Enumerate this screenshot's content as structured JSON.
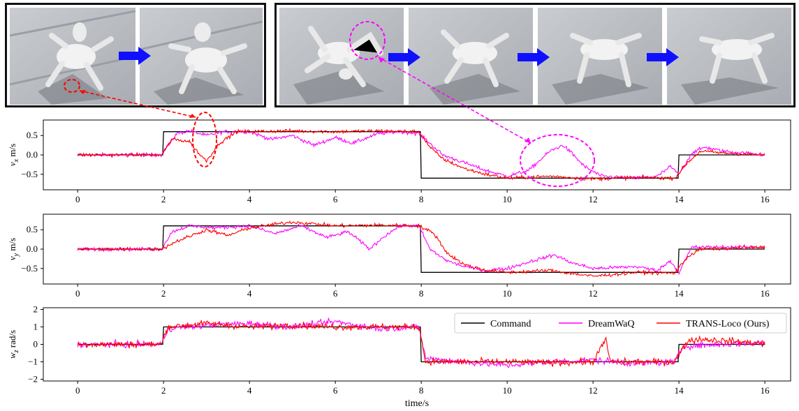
{
  "illustrations": {
    "frames": [
      {
        "name": "dreamwaq-stumble-sequence",
        "photos": [
          "robot-frame-1",
          "robot-frame-2"
        ]
      },
      {
        "name": "transloco-recovery-sequence",
        "photos": [
          "robot-frame-3",
          "robot-frame-4",
          "robot-frame-5",
          "robot-frame-6"
        ]
      }
    ]
  },
  "chart_data": {
    "type": "line",
    "xlabel": "time/s",
    "xlim": [
      -0.8,
      16.6
    ],
    "xticks": [
      0,
      2,
      4,
      6,
      8,
      10,
      12,
      14,
      16
    ],
    "colors": {
      "Command": "#000000",
      "DreamWaQ": "#ff00ff",
      "TRANS-Loco (Ours)": "#ff0000"
    },
    "legend": {
      "entries": [
        "Command",
        "DreamWaQ",
        "TRANS-Loco (Ours)"
      ],
      "position": "upper-right of bottom panel"
    },
    "panels": [
      {
        "id": "vx",
        "ylabel_main": "v",
        "ylabel_sub": "x",
        "ylabel_unit": " m/s",
        "ylim": [
          -0.9,
          0.9
        ],
        "yticks": [
          -0.5,
          0.0,
          0.5
        ],
        "ytick_labels": [
          "−0.5",
          "0.0",
          "0.5"
        ],
        "series": [
          {
            "name": "Command",
            "points": [
              [
                0,
                0
              ],
              [
                1.98,
                0
              ],
              [
                2,
                0.6
              ],
              [
                7.98,
                0.6
              ],
              [
                8,
                -0.6
              ],
              [
                13.98,
                -0.6
              ],
              [
                14,
                0
              ],
              [
                16,
                0
              ]
            ]
          },
          {
            "name": "DreamWaQ",
            "points": [
              [
                0,
                0
              ],
              [
                1.95,
                0
              ],
              [
                2.3,
                0.55
              ],
              [
                2.6,
                0.62
              ],
              [
                3.0,
                0.5
              ],
              [
                3.4,
                0.6
              ],
              [
                4.0,
                0.6
              ],
              [
                4.5,
                0.4
              ],
              [
                5.0,
                0.5
              ],
              [
                5.5,
                0.25
              ],
              [
                6.0,
                0.45
              ],
              [
                6.4,
                0.3
              ],
              [
                7.0,
                0.55
              ],
              [
                7.5,
                0.6
              ],
              [
                7.95,
                0.55
              ],
              [
                8.2,
                0.3
              ],
              [
                8.5,
                0.0
              ],
              [
                9.0,
                -0.2
              ],
              [
                9.5,
                -0.4
              ],
              [
                10,
                -0.55
              ],
              [
                10.5,
                -0.4
              ],
              [
                10.8,
                -0.1
              ],
              [
                11.0,
                0.1
              ],
              [
                11.3,
                0.25
              ],
              [
                11.5,
                0.05
              ],
              [
                11.8,
                -0.3
              ],
              [
                12.2,
                -0.55
              ],
              [
                13,
                -0.6
              ],
              [
                13.5,
                -0.55
              ],
              [
                13.8,
                -0.3
              ],
              [
                14.0,
                -0.5
              ],
              [
                14.3,
                0.05
              ],
              [
                14.6,
                0.2
              ],
              [
                15,
                0.1
              ],
              [
                16,
                0
              ]
            ]
          },
          {
            "name": "TRANS-Loco (Ours)",
            "points": [
              [
                0,
                0
              ],
              [
                1.95,
                0
              ],
              [
                2.2,
                0.4
              ],
              [
                2.6,
                0.35
              ],
              [
                2.85,
                0.0
              ],
              [
                3.0,
                -0.15
              ],
              [
                3.3,
                0.3
              ],
              [
                3.7,
                0.6
              ],
              [
                5,
                0.62
              ],
              [
                6,
                0.6
              ],
              [
                7,
                0.62
              ],
              [
                7.95,
                0.6
              ],
              [
                8.2,
                0.2
              ],
              [
                8.5,
                -0.1
              ],
              [
                9.0,
                -0.35
              ],
              [
                9.5,
                -0.5
              ],
              [
                10,
                -0.6
              ],
              [
                11,
                -0.55
              ],
              [
                12,
                -0.62
              ],
              [
                13,
                -0.58
              ],
              [
                13.9,
                -0.6
              ],
              [
                14.2,
                -0.2
              ],
              [
                14.5,
                0.1
              ],
              [
                15,
                0.05
              ],
              [
                16,
                0
              ]
            ]
          }
        ]
      },
      {
        "id": "vy",
        "ylabel_main": "v",
        "ylabel_sub": "y",
        "ylabel_unit": " m/s",
        "ylim": [
          -0.9,
          0.9
        ],
        "yticks": [
          -0.5,
          0.0,
          0.5
        ],
        "ytick_labels": [
          "−0.5",
          "0.0",
          "0.5"
        ],
        "series": [
          {
            "name": "Command",
            "points": [
              [
                0,
                0
              ],
              [
                1.98,
                0
              ],
              [
                2,
                0.6
              ],
              [
                7.98,
                0.6
              ],
              [
                8,
                -0.6
              ],
              [
                13.98,
                -0.6
              ],
              [
                14,
                0
              ],
              [
                16,
                0
              ]
            ]
          },
          {
            "name": "DreamWaQ",
            "points": [
              [
                0,
                0
              ],
              [
                1.95,
                0
              ],
              [
                2.2,
                0.45
              ],
              [
                2.6,
                0.6
              ],
              [
                3.2,
                0.55
              ],
              [
                4,
                0.6
              ],
              [
                4.6,
                0.4
              ],
              [
                5.2,
                0.6
              ],
              [
                5.8,
                0.3
              ],
              [
                6.3,
                0.45
              ],
              [
                6.8,
                0.0
              ],
              [
                7.1,
                0.3
              ],
              [
                7.5,
                0.6
              ],
              [
                7.95,
                0.6
              ],
              [
                8.2,
                0.0
              ],
              [
                8.6,
                -0.3
              ],
              [
                9.0,
                -0.45
              ],
              [
                9.5,
                -0.55
              ],
              [
                10,
                -0.5
              ],
              [
                10.6,
                -0.3
              ],
              [
                11.1,
                -0.15
              ],
              [
                11.5,
                -0.35
              ],
              [
                12,
                -0.5
              ],
              [
                13,
                -0.45
              ],
              [
                13.5,
                -0.55
              ],
              [
                13.8,
                -0.3
              ],
              [
                14,
                -0.6
              ],
              [
                14.3,
                0.05
              ],
              [
                16,
                0.05
              ]
            ]
          },
          {
            "name": "TRANS-Loco (Ours)",
            "points": [
              [
                0,
                0
              ],
              [
                1.95,
                0
              ],
              [
                2.3,
                0.2
              ],
              [
                3,
                0.5
              ],
              [
                3.5,
                0.35
              ],
              [
                4,
                0.55
              ],
              [
                5,
                0.7
              ],
              [
                6,
                0.6
              ],
              [
                7,
                0.62
              ],
              [
                7.95,
                0.6
              ],
              [
                8.3,
                0.4
              ],
              [
                8.6,
                -0.1
              ],
              [
                9,
                -0.4
              ],
              [
                9.5,
                -0.55
              ],
              [
                10,
                -0.6
              ],
              [
                11,
                -0.55
              ],
              [
                12,
                -0.7
              ],
              [
                13,
                -0.6
              ],
              [
                13.9,
                -0.62
              ],
              [
                14.2,
                -0.2
              ],
              [
                14.5,
                0.0
              ],
              [
                16,
                0.05
              ]
            ]
          }
        ]
      },
      {
        "id": "wz",
        "ylabel_main": "w",
        "ylabel_sub": "z",
        "ylabel_unit": " rad/s",
        "ylim": [
          -2.1,
          2.1
        ],
        "yticks": [
          -2,
          -1,
          0,
          1,
          2
        ],
        "ytick_labels": [
          "−2",
          "−1",
          "0",
          "1",
          "2"
        ],
        "series": [
          {
            "name": "Command",
            "points": [
              [
                0,
                0
              ],
              [
                1.98,
                0
              ],
              [
                2,
                1
              ],
              [
                7.98,
                1
              ],
              [
                8,
                -1
              ],
              [
                13.98,
                -1
              ],
              [
                14,
                0
              ],
              [
                16,
                0
              ]
            ]
          },
          {
            "name": "DreamWaQ",
            "points": [
              [
                0,
                0
              ],
              [
                1.95,
                0
              ],
              [
                2.1,
                0.9
              ],
              [
                3,
                1.1
              ],
              [
                4,
                1.2
              ],
              [
                5,
                1.0
              ],
              [
                6,
                1.3
              ],
              [
                7,
                0.9
              ],
              [
                7.95,
                1.0
              ],
              [
                8.1,
                -0.8
              ],
              [
                9,
                -1.0
              ],
              [
                10,
                -1.2
              ],
              [
                11,
                -1.0
              ],
              [
                12,
                -0.9
              ],
              [
                13,
                -1.1
              ],
              [
                13.9,
                -1.0
              ],
              [
                14.1,
                -0.1
              ],
              [
                16,
                0.1
              ]
            ]
          },
          {
            "name": "TRANS-Loco (Ours)",
            "points": [
              [
                0,
                0
              ],
              [
                1.95,
                0
              ],
              [
                2.1,
                1.0
              ],
              [
                3,
                1.2
              ],
              [
                4,
                1.0
              ],
              [
                5,
                1.1
              ],
              [
                6,
                1.0
              ],
              [
                7,
                1.0
              ],
              [
                7.95,
                1.0
              ],
              [
                8.1,
                -1.0
              ],
              [
                9,
                -1.0
              ],
              [
                10,
                -1.0
              ],
              [
                11,
                -1.05
              ],
              [
                12,
                -1.0
              ],
              [
                12.3,
                0.3
              ],
              [
                12.4,
                -1.0
              ],
              [
                13,
                -1.0
              ],
              [
                13.9,
                -1.0
              ],
              [
                14.2,
                0.2
              ],
              [
                14.5,
                0.3
              ],
              [
                16,
                0.05
              ]
            ]
          }
        ]
      }
    ]
  }
}
